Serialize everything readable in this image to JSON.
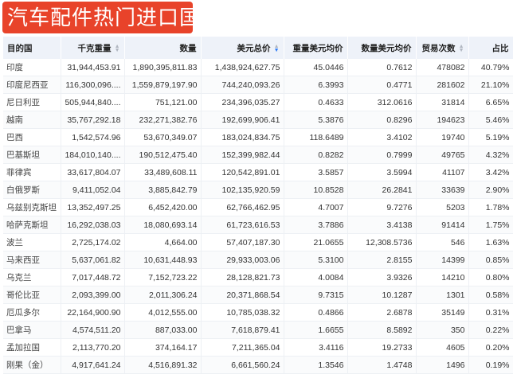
{
  "title": "汽车配件热门进口国",
  "columns": [
    {
      "label": "目的国",
      "sortable": false
    },
    {
      "label": "千克重量",
      "sortable": true,
      "sort": "none"
    },
    {
      "label": "数量",
      "sortable": false
    },
    {
      "label": "美元总价",
      "sortable": true,
      "sort": "desc"
    },
    {
      "label": "重量美元均价",
      "sortable": false
    },
    {
      "label": "数量美元均价",
      "sortable": false
    },
    {
      "label": "贸易次数",
      "sortable": true,
      "sort": "none"
    },
    {
      "label": "占比",
      "sortable": false
    }
  ],
  "rows": [
    [
      "印度",
      "31,944,453.91",
      "1,890,395,811.83",
      "1,438,924,627.75",
      "45.0446",
      "0.7612",
      "478082",
      "40.79%"
    ],
    [
      "印度尼西亚",
      "116,300,096....",
      "1,559,879,197.90",
      "744,240,093.26",
      "6.3993",
      "0.4771",
      "281602",
      "21.10%"
    ],
    [
      "尼日利亚",
      "505,944,840....",
      "751,121.00",
      "234,396,035.27",
      "0.4633",
      "312.0616",
      "31814",
      "6.65%"
    ],
    [
      "越南",
      "35,767,292.18",
      "232,271,382.76",
      "192,699,906.41",
      "5.3876",
      "0.8296",
      "194623",
      "5.46%"
    ],
    [
      "巴西",
      "1,542,574.96",
      "53,670,349.07",
      "183,024,834.75",
      "118.6489",
      "3.4102",
      "19740",
      "5.19%"
    ],
    [
      "巴基斯坦",
      "184,010,140....",
      "190,512,475.40",
      "152,399,982.44",
      "0.8282",
      "0.7999",
      "49765",
      "4.32%"
    ],
    [
      "菲律宾",
      "33,617,804.07",
      "33,489,608.11",
      "120,542,891.01",
      "3.5857",
      "3.5994",
      "41107",
      "3.42%"
    ],
    [
      "白俄罗斯",
      "9,411,052.04",
      "3,885,842.79",
      "102,135,920.59",
      "10.8528",
      "26.2841",
      "33639",
      "2.90%"
    ],
    [
      "乌兹别克斯坦",
      "13,352,497.25",
      "6,452,420.00",
      "62,766,462.95",
      "4.7007",
      "9.7276",
      "5203",
      "1.78%"
    ],
    [
      "哈萨克斯坦",
      "16,292,038.03",
      "18,080,693.14",
      "61,723,616.53",
      "3.7886",
      "3.4138",
      "91414",
      "1.75%"
    ],
    [
      "波兰",
      "2,725,174.02",
      "4,664.00",
      "57,407,187.30",
      "21.0655",
      "12,308.5736",
      "546",
      "1.63%"
    ],
    [
      "马来西亚",
      "5,637,061.82",
      "10,631,448.93",
      "29,933,003.06",
      "5.3100",
      "2.8155",
      "14399",
      "0.85%"
    ],
    [
      "乌克兰",
      "7,017,448.72",
      "7,152,723.22",
      "28,128,821.73",
      "4.0084",
      "3.9326",
      "14210",
      "0.80%"
    ],
    [
      "哥伦比亚",
      "2,093,399.00",
      "2,011,306.24",
      "20,371,868.54",
      "9.7315",
      "10.1287",
      "1301",
      "0.58%"
    ],
    [
      "厄瓜多尔",
      "22,164,900.90",
      "4,012,555.00",
      "10,785,038.32",
      "0.4866",
      "2.6878",
      "35149",
      "0.31%"
    ],
    [
      "巴拿马",
      "4,574,511.20",
      "887,033.00",
      "7,618,879.41",
      "1.6655",
      "8.5892",
      "350",
      "0.22%"
    ],
    [
      "孟加拉国",
      "2,113,770.20",
      "374,164.17",
      "7,211,365.04",
      "3.4116",
      "19.2733",
      "4605",
      "0.20%"
    ],
    [
      "刚果（金）",
      "4,917,641.24",
      "4,516,891.32",
      "6,661,560.24",
      "1.3546",
      "1.4748",
      "1496",
      "0.19%"
    ]
  ],
  "colors": {
    "title_bg": "#e8432a",
    "header_bg": "#eef2f9",
    "sort_active": "#2f7cf6"
  }
}
